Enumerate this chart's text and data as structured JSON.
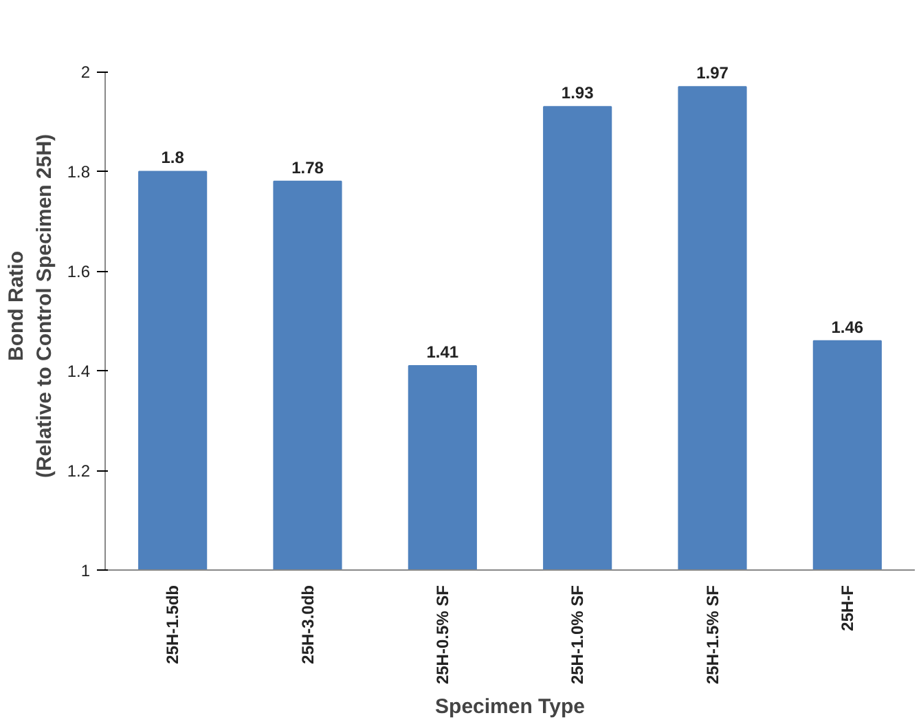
{
  "chart_data": {
    "type": "bar",
    "xlabel": "Specimen Type",
    "ylabel": "Bond Ratio\n(Relative to Control Specimen 25H)",
    "categories": [
      "25H-1.5db",
      "25H-3.0db",
      "25H-0.5% SF",
      "25H-1.0% SF",
      "25H-1.5% SF",
      "25H-F"
    ],
    "values": [
      1.8,
      1.78,
      1.41,
      1.93,
      1.97,
      1.46
    ],
    "color": "#4f81bd",
    "ylim": [
      1,
      2
    ],
    "yticks": [
      {
        "value": 1,
        "label": "1"
      },
      {
        "value": 1.2,
        "label": "1.2"
      },
      {
        "value": 1.4,
        "label": "1.4"
      },
      {
        "value": 1.6,
        "label": "1.6"
      },
      {
        "value": 1.8,
        "label": "1.8"
      },
      {
        "value": 2,
        "label": "2"
      }
    ],
    "grid": false,
    "data_labels": true
  }
}
